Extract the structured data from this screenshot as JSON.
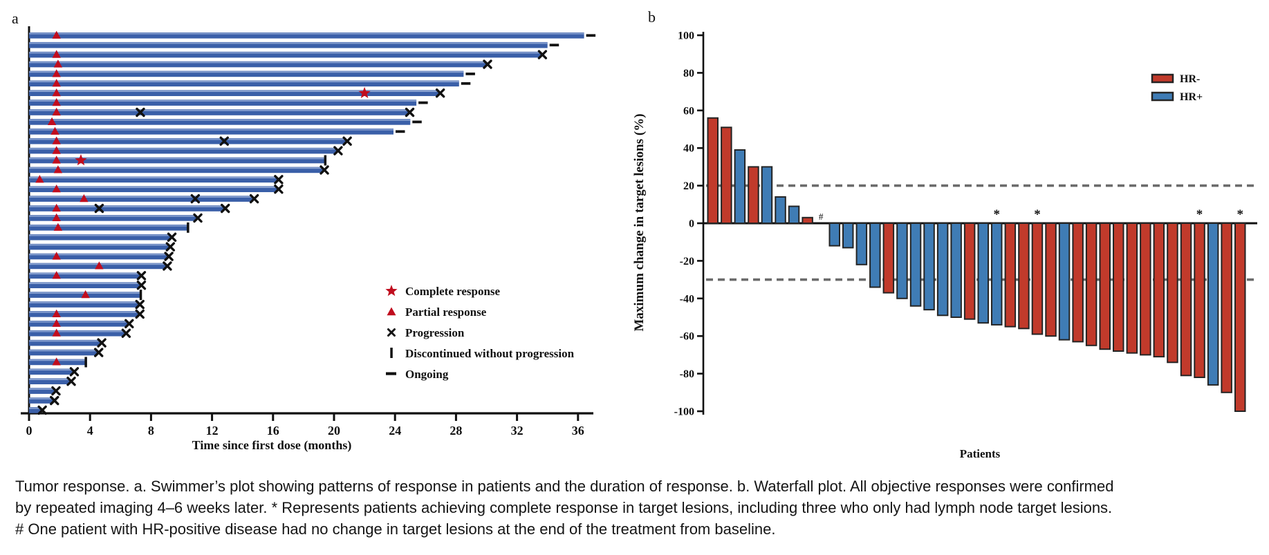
{
  "figure": {
    "panel_a_label": "a",
    "panel_b_label": "b"
  },
  "caption": "Tumor response. a. Swimmer’s plot showing patterns of response in patients and the duration of response. b. Waterfall plot. All objective responses were confirmed by repeated imaging 4–6 weeks later. * Represents patients achieving complete response in target lesions, including three who only had lymph node target lesions. # One patient with HR-positive disease had no change in target lesions at the end of the treatment from baseline.",
  "colors": {
    "swimmer_bar": "#3a5fa8",
    "swimmer_bar_highlight": "#94aad6",
    "hr_neg": "#c13a2b",
    "hr_pos": "#3f7cb5",
    "marker_red": "#c00d1e",
    "axis": "#111111",
    "bar_stroke": "#242424",
    "dashed_line": "#6b6b6b"
  },
  "chart_data": [
    {
      "type": "bar",
      "subtype": "swimmer",
      "panel": "a",
      "xlabel": "Time since first dose (months)",
      "xticks": [
        0,
        4,
        8,
        12,
        16,
        20,
        24,
        28,
        32,
        36
      ],
      "xlim": [
        0,
        37
      ],
      "grid": false,
      "legend_position": "right-middle",
      "legend": [
        {
          "marker": "star",
          "label": "Complete response"
        },
        {
          "marker": "triangle",
          "label": "Partial response"
        },
        {
          "marker": "x",
          "label": "Progression"
        },
        {
          "marker": "bar",
          "label": "Discontinued without progression"
        },
        {
          "marker": "dash",
          "label": "Ongoing"
        }
      ],
      "bars": [
        {
          "d": 36.4,
          "end": "ongoing",
          "marks": [
            [
              "tri",
              1.8
            ]
          ]
        },
        {
          "d": 34.0,
          "end": "ongoing",
          "marks": []
        },
        {
          "d": 33.6,
          "end": "progression",
          "marks": [
            [
              "tri",
              1.8
            ]
          ]
        },
        {
          "d": 30.0,
          "end": "progression",
          "marks": [
            [
              "tri",
              1.9
            ]
          ]
        },
        {
          "d": 28.5,
          "end": "ongoing",
          "marks": [
            [
              "tri",
              1.8
            ]
          ]
        },
        {
          "d": 28.2,
          "end": "ongoing",
          "marks": [
            [
              "tri",
              1.8
            ]
          ]
        },
        {
          "d": 26.9,
          "end": "progression",
          "marks": [
            [
              "tri",
              1.8
            ],
            [
              "star",
              22.0
            ]
          ]
        },
        {
          "d": 25.4,
          "end": "ongoing",
          "marks": [
            [
              "tri",
              1.8
            ]
          ]
        },
        {
          "d": 24.9,
          "end": "progression",
          "marks": [
            [
              "tri",
              1.8
            ],
            [
              "x",
              7.3
            ]
          ]
        },
        {
          "d": 25.0,
          "end": "ongoing",
          "marks": [
            [
              "tri",
              1.5
            ]
          ]
        },
        {
          "d": 23.9,
          "end": "ongoing",
          "marks": [
            [
              "tri",
              1.7
            ]
          ]
        },
        {
          "d": 20.8,
          "end": "progression",
          "marks": [
            [
              "tri",
              1.8
            ],
            [
              "x",
              12.8
            ]
          ]
        },
        {
          "d": 20.2,
          "end": "progression",
          "marks": [
            [
              "tri",
              1.8
            ]
          ]
        },
        {
          "d": 19.4,
          "end": "discontinued",
          "marks": [
            [
              "tri",
              1.8
            ],
            [
              "star",
              3.4
            ]
          ]
        },
        {
          "d": 19.3,
          "end": "progression",
          "marks": [
            [
              "tri",
              1.9
            ]
          ]
        },
        {
          "d": 16.3,
          "end": "progression",
          "marks": [
            [
              "tri",
              0.7
            ]
          ]
        },
        {
          "d": 16.3,
          "end": "progression",
          "marks": [
            [
              "tri",
              1.8
            ]
          ]
        },
        {
          "d": 14.7,
          "end": "progression",
          "marks": [
            [
              "tri",
              3.6
            ],
            [
              "x",
              10.9
            ]
          ]
        },
        {
          "d": 12.8,
          "end": "progression",
          "marks": [
            [
              "tri",
              1.8
            ],
            [
              "x",
              4.6
            ]
          ]
        },
        {
          "d": 11.0,
          "end": "progression",
          "marks": [
            [
              "tri",
              1.8
            ]
          ]
        },
        {
          "d": 10.4,
          "end": "discontinued",
          "marks": [
            [
              "tri",
              1.9
            ]
          ]
        },
        {
          "d": 9.3,
          "end": "progression",
          "marks": []
        },
        {
          "d": 9.2,
          "end": "progression",
          "marks": []
        },
        {
          "d": 9.1,
          "end": "progression",
          "marks": [
            [
              "tri",
              1.8
            ]
          ]
        },
        {
          "d": 9.0,
          "end": "progression",
          "marks": [
            [
              "tri",
              4.6
            ]
          ]
        },
        {
          "d": 7.3,
          "end": "progression",
          "marks": [
            [
              "tri",
              1.8
            ]
          ]
        },
        {
          "d": 7.3,
          "end": "progression",
          "marks": []
        },
        {
          "d": 7.3,
          "end": "discontinued",
          "marks": [
            [
              "tri",
              3.7
            ]
          ]
        },
        {
          "d": 7.2,
          "end": "progression",
          "marks": []
        },
        {
          "d": 7.2,
          "end": "progression",
          "marks": [
            [
              "tri",
              1.8
            ]
          ]
        },
        {
          "d": 6.5,
          "end": "progression",
          "marks": [
            [
              "tri",
              1.8
            ]
          ]
        },
        {
          "d": 6.3,
          "end": "progression",
          "marks": [
            [
              "tri",
              1.8
            ]
          ]
        },
        {
          "d": 4.7,
          "end": "progression",
          "marks": []
        },
        {
          "d": 4.5,
          "end": "progression",
          "marks": []
        },
        {
          "d": 3.7,
          "end": "discontinued",
          "marks": [
            [
              "tri",
              1.8
            ]
          ]
        },
        {
          "d": 2.9,
          "end": "progression",
          "marks": []
        },
        {
          "d": 2.7,
          "end": "progression",
          "marks": []
        },
        {
          "d": 1.7,
          "end": "progression",
          "marks": []
        },
        {
          "d": 1.6,
          "end": "progression",
          "marks": []
        },
        {
          "d": 0.8,
          "end": "progression",
          "marks": []
        }
      ]
    },
    {
      "type": "bar",
      "subtype": "waterfall",
      "panel": "b",
      "ylabel": "Maximum change in target lesions (%)",
      "xlabel": "Patients",
      "yticks": [
        100,
        80,
        60,
        40,
        20,
        0,
        -20,
        -40,
        -60,
        -80,
        -100
      ],
      "ylim": [
        -100,
        100
      ],
      "reference_lines": [
        20,
        -30
      ],
      "grid": false,
      "legend_position": "top-right",
      "legend": [
        {
          "label": "HR-",
          "group": "HR-"
        },
        {
          "label": "HR+",
          "group": "HR+"
        }
      ],
      "patients": [
        {
          "v": 56,
          "g": "HR-"
        },
        {
          "v": 51,
          "g": "HR-"
        },
        {
          "v": 39,
          "g": "HR+"
        },
        {
          "v": 30,
          "g": "HR-"
        },
        {
          "v": 30,
          "g": "HR+"
        },
        {
          "v": 14,
          "g": "HR+"
        },
        {
          "v": 9,
          "g": "HR+"
        },
        {
          "v": 3,
          "g": "HR-"
        },
        {
          "v": 0,
          "g": "HR+",
          "note": "#"
        },
        {
          "v": -12,
          "g": "HR+"
        },
        {
          "v": -13,
          "g": "HR+"
        },
        {
          "v": -22,
          "g": "HR+"
        },
        {
          "v": -34,
          "g": "HR+"
        },
        {
          "v": -37,
          "g": "HR-"
        },
        {
          "v": -40,
          "g": "HR+"
        },
        {
          "v": -44,
          "g": "HR+"
        },
        {
          "v": -46,
          "g": "HR+"
        },
        {
          "v": -49,
          "g": "HR+"
        },
        {
          "v": -50,
          "g": "HR+"
        },
        {
          "v": -51,
          "g": "HR-"
        },
        {
          "v": -53,
          "g": "HR+"
        },
        {
          "v": -54,
          "g": "HR+",
          "note": "*"
        },
        {
          "v": -55,
          "g": "HR-"
        },
        {
          "v": -56,
          "g": "HR-"
        },
        {
          "v": -59,
          "g": "HR-",
          "note": "*"
        },
        {
          "v": -60,
          "g": "HR-"
        },
        {
          "v": -62,
          "g": "HR+"
        },
        {
          "v": -63,
          "g": "HR-"
        },
        {
          "v": -65,
          "g": "HR-"
        },
        {
          "v": -67,
          "g": "HR-"
        },
        {
          "v": -68,
          "g": "HR-"
        },
        {
          "v": -69,
          "g": "HR-"
        },
        {
          "v": -70,
          "g": "HR-"
        },
        {
          "v": -71,
          "g": "HR-"
        },
        {
          "v": -74,
          "g": "HR-"
        },
        {
          "v": -81,
          "g": "HR-"
        },
        {
          "v": -82,
          "g": "HR-",
          "note": "*"
        },
        {
          "v": -86,
          "g": "HR+"
        },
        {
          "v": -90,
          "g": "HR-"
        },
        {
          "v": -100,
          "g": "HR-",
          "note": "*"
        }
      ]
    }
  ]
}
